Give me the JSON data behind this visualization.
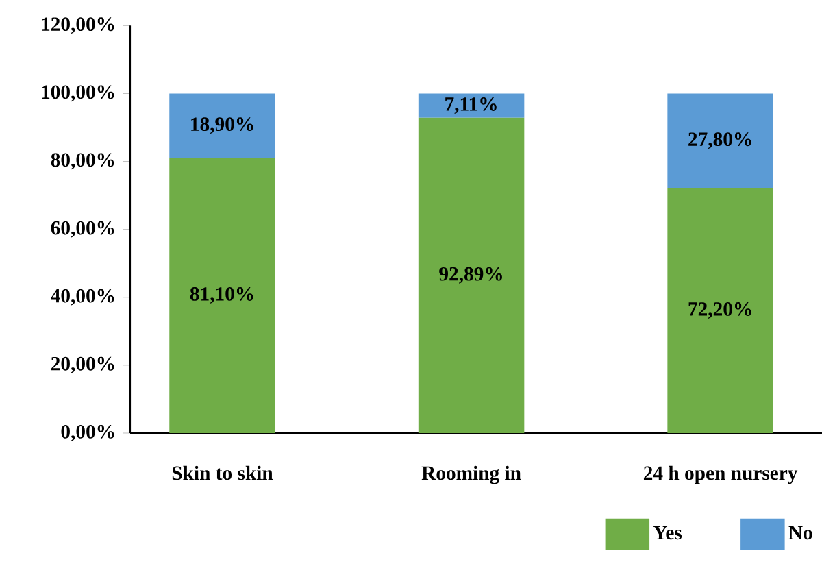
{
  "chart_data": {
    "type": "bar",
    "stacked": true,
    "categories": [
      "Skin to skin",
      "Rooming in",
      "24 h open nursery"
    ],
    "series": [
      {
        "name": "Yes",
        "color": "#70ad47",
        "values": [
          81.1,
          92.89,
          72.2
        ],
        "value_labels": [
          "81,10%",
          "92,89%",
          "72,20%"
        ]
      },
      {
        "name": "No",
        "color": "#5b9bd5",
        "values": [
          18.9,
          7.11,
          27.8
        ],
        "value_labels": [
          "18,90%",
          "7,11%",
          "27,80%"
        ]
      }
    ],
    "ylim": [
      0,
      120
    ],
    "yticks": [
      {
        "value": 0,
        "label": "0,00%"
      },
      {
        "value": 20,
        "label": "20,00%"
      },
      {
        "value": 40,
        "label": "40,00%"
      },
      {
        "value": 60,
        "label": "60,00%"
      },
      {
        "value": 80,
        "label": "80,00%"
      },
      {
        "value": 100,
        "label": "100,00%"
      },
      {
        "value": 120,
        "label": "120,00%"
      }
    ],
    "grid": false,
    "legend": "bottom"
  }
}
